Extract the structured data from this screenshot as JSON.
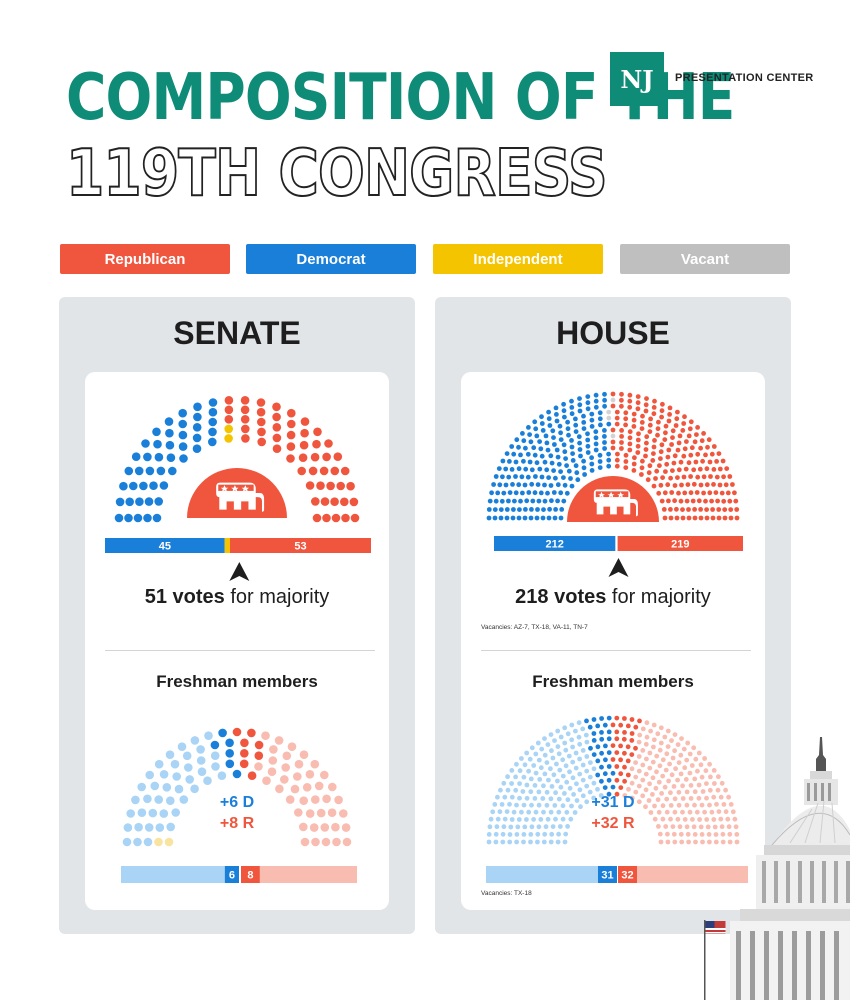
{
  "title": {
    "line1": "COMPOSITION OF THE",
    "line2": "119TH CONGRESS"
  },
  "brand": {
    "mark": "NJ",
    "name": "PRESENTATION CENTER"
  },
  "legend": [
    {
      "label": "Republican",
      "color": "#f0563e"
    },
    {
      "label": "Democrat",
      "color": "#1a7fd9"
    },
    {
      "label": "Independent",
      "color": "#f5c400"
    },
    {
      "label": "Vacant",
      "color": "#bfbfbf"
    }
  ],
  "colors": {
    "republican": "#f0563e",
    "democrat": "#1a7fd9",
    "independent": "#f5c400",
    "vacant": "#d3d3d3",
    "republican_light": "#f9bcb0",
    "democrat_light": "#a9d4f5",
    "independent_light": "#f8e3a0",
    "democrat_fresh_text": "#1a7fd9",
    "republican_fresh_text": "#f0563e"
  },
  "icons": {
    "center_emblem": "republican-elephant-icon",
    "pointer": "majority-pointer-icon",
    "decoration": "capitol-dome-image"
  },
  "senate": {
    "title": "SENATE",
    "majority_bold": "51 votes",
    "majority_rest": " for majority",
    "vacancies": "",
    "freshman_title": "Freshman members",
    "freshman_d": "+6 D",
    "freshman_r": "+8 R"
  },
  "house": {
    "title": "HOUSE",
    "majority_bold": "218 votes",
    "majority_rest": " for majority",
    "vacancies": "Vacancies: AZ-7, TX-18, VA-11, TN-7",
    "freshman_title": "Freshman members",
    "freshman_d": "+31 D",
    "freshman_r": "+32 R",
    "freshman_vacancies": "Vacancies: TX-18"
  },
  "chart_data": [
    {
      "type": "parliament",
      "chamber": "Senate",
      "total": 100,
      "series": [
        {
          "name": "Democrat",
          "values": [
            45
          ]
        },
        {
          "name": "Independent",
          "values": [
            2
          ]
        },
        {
          "name": "Republican",
          "values": [
            53
          ]
        }
      ],
      "bar_labels": [
        "45",
        "53"
      ],
      "majority_threshold": 51
    },
    {
      "type": "parliament",
      "chamber": "House",
      "total": 435,
      "series": [
        {
          "name": "Democrat",
          "values": [
            212
          ]
        },
        {
          "name": "Vacant",
          "values": [
            4
          ]
        },
        {
          "name": "Republican",
          "values": [
            219
          ]
        }
      ],
      "bar_labels": [
        "212",
        "219"
      ],
      "majority_threshold": 218
    },
    {
      "type": "parliament",
      "chamber": "Senate freshman",
      "total": 100,
      "series": [
        {
          "name": "Democrat freshmen",
          "values": [
            6
          ]
        },
        {
          "name": "Republican freshmen",
          "values": [
            8
          ]
        }
      ],
      "bar_labels": [
        "6",
        "8"
      ]
    },
    {
      "type": "parliament",
      "chamber": "House freshman",
      "total": 435,
      "series": [
        {
          "name": "Democrat freshmen",
          "values": [
            31
          ]
        },
        {
          "name": "Republican freshmen",
          "values": [
            32
          ]
        }
      ],
      "bar_labels": [
        "31",
        "32"
      ]
    }
  ]
}
